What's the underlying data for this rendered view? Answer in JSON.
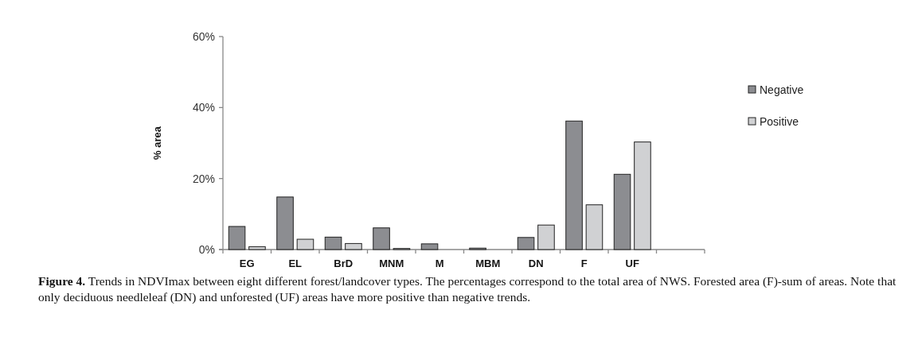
{
  "chart_data": {
    "type": "bar",
    "ylabel": "% area",
    "categories": [
      "EG",
      "EL",
      "BrD",
      "MNM",
      "M",
      "MBM",
      "DN",
      "F",
      "UF",
      null
    ],
    "series": [
      {
        "name": "Negative",
        "color": "#8c8d91",
        "values": [
          6.5,
          14.8,
          3.5,
          6.1,
          1.6,
          0.4,
          3.4,
          36.2,
          21.2,
          null
        ]
      },
      {
        "name": "Positive",
        "color": "#d0d1d3",
        "values": [
          0.8,
          2.9,
          1.7,
          0.3,
          0,
          0,
          6.9,
          12.6,
          30.3,
          null
        ]
      }
    ],
    "ylim": [
      0,
      60
    ],
    "yticks": [
      {
        "value": 0,
        "label": "0%"
      },
      {
        "value": 20,
        "label": "20%"
      },
      {
        "value": 40,
        "label": "40%"
      },
      {
        "value": 60,
        "label": "60%"
      }
    ],
    "grid": false,
    "legend": "right",
    "annotations": [
      "Figure 4. Trends in NDVImax between eight different forest/landcover types. The percentages correspond to the total area of NWS. Forested area (F)-sum of areas. Note that only deciduous needleleaf (DN) and unforested (UF) areas have more positive than negative trends."
    ]
  }
}
